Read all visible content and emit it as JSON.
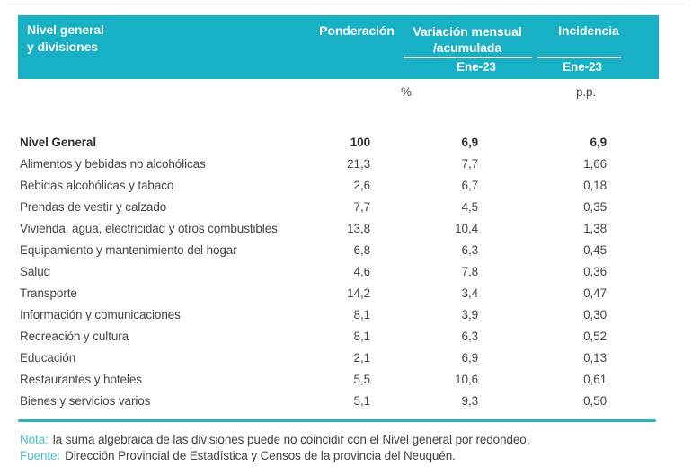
{
  "colors": {
    "header_teal": "#18b0c4",
    "rule_teal": "#2db4c3",
    "label_teal": "#4cbecd",
    "text_dark": "#454545"
  },
  "table": {
    "header": {
      "division_line1": "Nivel general",
      "division_line2": "y divisiones",
      "ponderacion": "Ponderación",
      "variacion_line1": "Variación mensual",
      "variacion_line2": "/acumulada",
      "incidencia": "Incidencia",
      "variacion_period": "Ene-23",
      "incidencia_period": "Ene-23",
      "variacion_unit": "%",
      "incidencia_unit": "p.p."
    },
    "rows": [
      {
        "name": "Nivel General",
        "ponderacion": "100",
        "variacion": "6,9",
        "incidencia": "6,9",
        "bold": true
      },
      {
        "name": "Alimentos y bebidas no alcohólicas",
        "ponderacion": "21,3",
        "variacion": "7,7",
        "incidencia": "1,66",
        "bold": false
      },
      {
        "name": "Bebidas alcohólicas y tabaco",
        "ponderacion": "2,6",
        "variacion": "6,7",
        "incidencia": "0,18",
        "bold": false
      },
      {
        "name": "Prendas de vestir y calzado",
        "ponderacion": "7,7",
        "variacion": "4,5",
        "incidencia": "0,35",
        "bold": false
      },
      {
        "name": "Vivienda, agua, electricidad y otros combustibles",
        "ponderacion": "13,8",
        "variacion": "10,4",
        "incidencia": "1,38",
        "bold": false
      },
      {
        "name": "Equipamiento y mantenimiento del hogar",
        "ponderacion": "6,8",
        "variacion": "6,3",
        "incidencia": "0,45",
        "bold": false
      },
      {
        "name": "Salud",
        "ponderacion": "4,6",
        "variacion": "7,8",
        "incidencia": "0,36",
        "bold": false
      },
      {
        "name": "Transporte",
        "ponderacion": "14,2",
        "variacion": "3,4",
        "incidencia": "0,47",
        "bold": false
      },
      {
        "name": "Información y comunicaciones",
        "ponderacion": "8,1",
        "variacion": "3,9",
        "incidencia": "0,30",
        "bold": false
      },
      {
        "name": "Recreación y cultura",
        "ponderacion": "8,1",
        "variacion": "6,3",
        "incidencia": "0,52",
        "bold": false
      },
      {
        "name": "Educación",
        "ponderacion": "2,1",
        "variacion": "6,9",
        "incidencia": "0,13",
        "bold": false
      },
      {
        "name": "Restaurantes y hoteles",
        "ponderacion": "5,5",
        "variacion": "10,6",
        "incidencia": "0,61",
        "bold": false
      },
      {
        "name": "Bienes y servicios varios",
        "ponderacion": "5,1",
        "variacion": "9,3",
        "incidencia": "0,50",
        "bold": false
      }
    ]
  },
  "footer": {
    "nota_label": "Nota:",
    "nota_text": "la suma algebraica de las divisiones puede no coincidir con el Nivel general por redondeo.",
    "fuente_label": "Fuente:",
    "fuente_text": "Dirección Provincial de Estadística y Censos de la provincia del Neuquén."
  },
  "chart_data": {
    "type": "table",
    "title": "Nivel general y divisiones — Ponderación, Variación mensual/acumulada (Ene-23, %), Incidencia (Ene-23, p.p.)",
    "columns": [
      "Nivel general y divisiones",
      "Ponderación",
      "Variación mensual/acumulada Ene-23 (%)",
      "Incidencia Ene-23 (p.p.)"
    ],
    "rows": [
      [
        "Nivel General",
        100,
        6.9,
        6.9
      ],
      [
        "Alimentos y bebidas no alcohólicas",
        21.3,
        7.7,
        1.66
      ],
      [
        "Bebidas alcohólicas y tabaco",
        2.6,
        6.7,
        0.18
      ],
      [
        "Prendas de vestir y calzado",
        7.7,
        4.5,
        0.35
      ],
      [
        "Vivienda, agua, electricidad y otros combustibles",
        13.8,
        10.4,
        1.38
      ],
      [
        "Equipamiento y mantenimiento del hogar",
        6.8,
        6.3,
        0.45
      ],
      [
        "Salud",
        4.6,
        7.8,
        0.36
      ],
      [
        "Transporte",
        14.2,
        3.4,
        0.47
      ],
      [
        "Información y comunicaciones",
        8.1,
        3.9,
        0.3
      ],
      [
        "Recreación y cultura",
        8.1,
        6.3,
        0.52
      ],
      [
        "Educación",
        2.1,
        6.9,
        0.13
      ],
      [
        "Restaurantes y hoteles",
        5.5,
        10.6,
        0.61
      ],
      [
        "Bienes y servicios varios",
        5.1,
        9.3,
        0.5
      ]
    ]
  }
}
